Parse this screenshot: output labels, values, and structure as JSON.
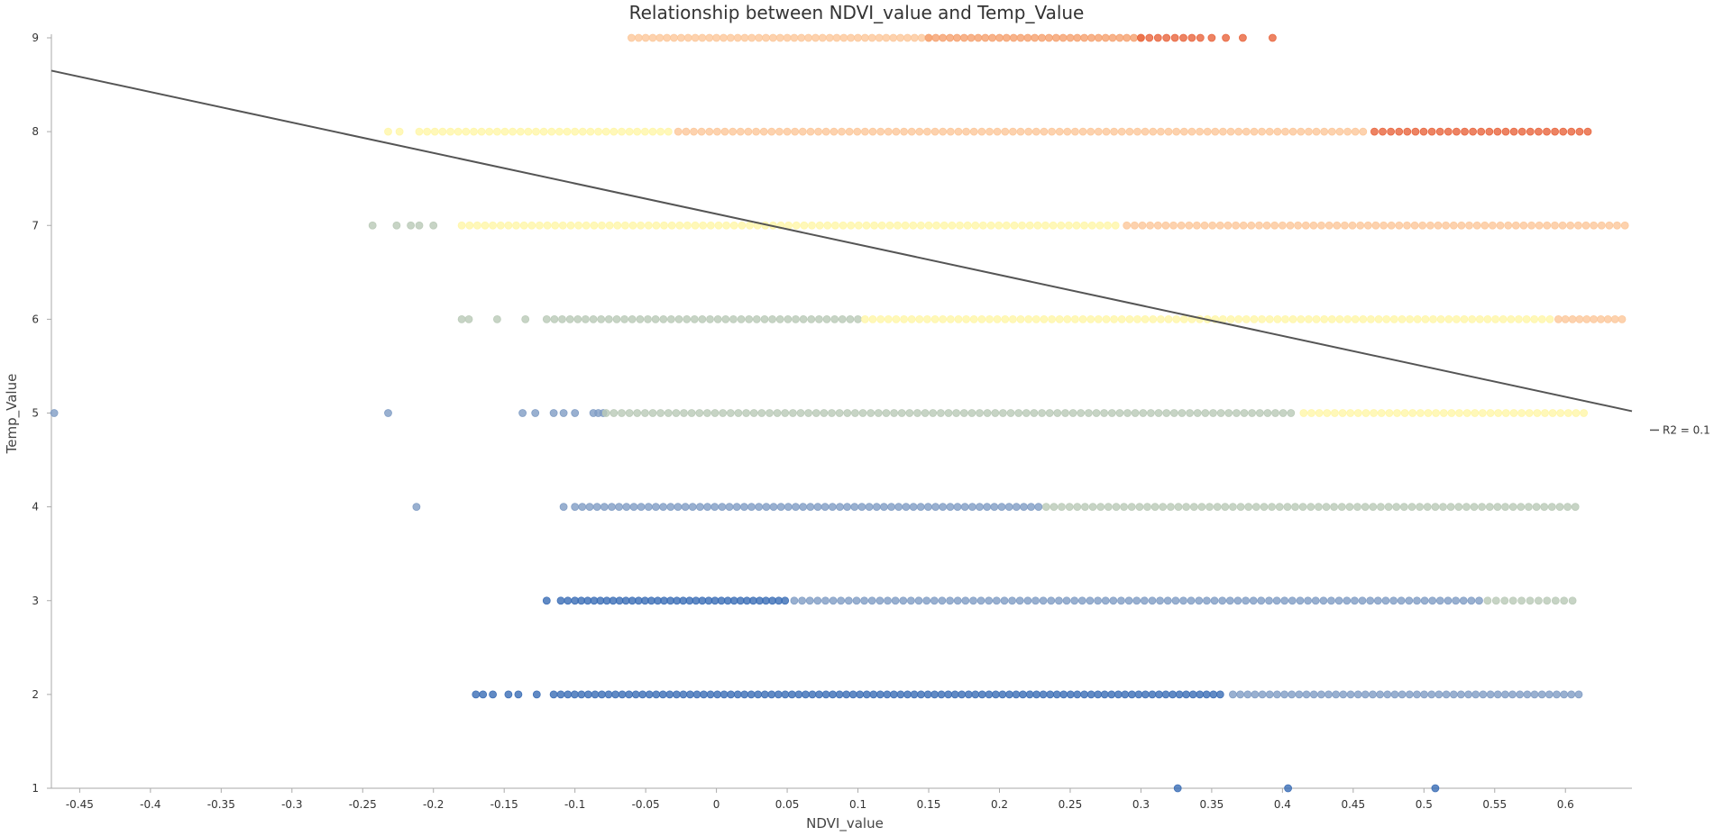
{
  "chart_data": {
    "type": "scatter",
    "title": "Relationship between NDVI_value and Temp_Value",
    "xlabel": "NDVI_value",
    "ylabel": "Temp_Value",
    "xlim": [
      -0.47,
      0.647
    ],
    "ylim": [
      1,
      9
    ],
    "x_ticks": [
      -0.45,
      -0.4,
      -0.35,
      -0.3,
      -0.25,
      -0.2,
      -0.15,
      -0.1,
      -0.05,
      0,
      0.05,
      0.1,
      0.15,
      0.2,
      0.25,
      0.3,
      0.35,
      0.4,
      0.45,
      0.5,
      0.55,
      0.6
    ],
    "y_ticks": [
      1,
      2,
      3,
      4,
      5,
      6,
      7,
      8,
      9
    ],
    "grid": false,
    "legend": {
      "position": "right",
      "label": "R2 = 0.1",
      "color": "#555555"
    },
    "colors": {
      "c1": "#3a6db5",
      "c2": "#7f9cc4",
      "c3": "#b9c9b7",
      "c4": "#fff6a8",
      "c5": "#fcc79a",
      "c6": "#f5a06e",
      "c7": "#e8643c"
    },
    "trendline": {
      "x": [
        -0.47,
        0.647
      ],
      "y": [
        8.65,
        5.02
      ]
    },
    "rows": [
      {
        "y": 1,
        "segments": [
          {
            "color": "c1",
            "points": [
              0.326,
              0.404,
              0.508
            ]
          }
        ]
      },
      {
        "y": 2,
        "segments": [
          {
            "color": "c1",
            "points": [
              -0.17,
              -0.165,
              -0.158,
              -0.147,
              -0.14,
              -0.127,
              -0.115,
              -0.11
            ],
            "from": -0.105,
            "to": 0.255,
            "step": 0.0048
          },
          {
            "color": "c1",
            "from": 0.26,
            "to": 0.36,
            "step": 0.0048
          },
          {
            "color": "c2",
            "from": 0.365,
            "to": 0.614,
            "step": 0.0052
          }
        ]
      },
      {
        "y": 3,
        "segments": [
          {
            "color": "c1",
            "points": [
              -0.12,
              -0.11,
              -0.105
            ],
            "from": -0.1,
            "to": 0.05,
            "step": 0.0045
          },
          {
            "color": "c2",
            "from": 0.055,
            "to": 0.54,
            "step": 0.0055
          },
          {
            "color": "c3",
            "from": 0.545,
            "to": 0.61,
            "step": 0.006
          }
        ]
      },
      {
        "y": 4,
        "segments": [
          {
            "color": "c2",
            "points": [
              -0.212,
              -0.108
            ],
            "from": -0.1,
            "to": 0.228,
            "step": 0.0052
          },
          {
            "color": "c3",
            "from": 0.233,
            "to": 0.612,
            "step": 0.0055
          }
        ]
      },
      {
        "y": 5,
        "segments": [
          {
            "color": "c2",
            "points": [
              -0.468,
              -0.232,
              -0.137,
              -0.128,
              -0.115,
              -0.108,
              -0.1
            ],
            "from": -0.087,
            "to": -0.08,
            "step": 0.0035
          },
          {
            "color": "c3",
            "from": -0.078,
            "to": 0.41,
            "step": 0.0055
          },
          {
            "color": "c4",
            "from": 0.415,
            "to": 0.618,
            "step": 0.0055
          }
        ]
      },
      {
        "y": 6,
        "segments": [
          {
            "color": "c3",
            "points": [
              -0.18,
              -0.175,
              -0.155,
              -0.135
            ],
            "from": -0.12,
            "to": 0.1,
            "step": 0.0055
          },
          {
            "color": "c4",
            "from": 0.105,
            "to": 0.59,
            "step": 0.0055
          },
          {
            "color": "c5",
            "from": 0.595,
            "to": 0.642,
            "step": 0.005
          }
        ]
      },
      {
        "y": 7,
        "segments": [
          {
            "color": "c3",
            "points": [
              -0.243,
              -0.226,
              -0.216,
              -0.21
            ],
            "from": -0.2,
            "to": -0.2,
            "step": 1
          },
          {
            "color": "c4",
            "from": -0.18,
            "to": 0.285,
            "step": 0.0055
          },
          {
            "color": "c5",
            "from": 0.29,
            "to": 0.645,
            "step": 0.0055
          }
        ]
      },
      {
        "y": 8,
        "segments": [
          {
            "color": "c4",
            "points": [
              -0.232,
              -0.224
            ],
            "from": -0.21,
            "to": -0.03,
            "step": 0.0055
          },
          {
            "color": "c5",
            "from": -0.027,
            "to": 0.46,
            "step": 0.0055
          },
          {
            "color": "c7",
            "from": 0.465,
            "to": 0.62,
            "step": 0.0058
          }
        ]
      },
      {
        "y": 9,
        "segments": [
          {
            "color": "c5",
            "from": -0.06,
            "to": 0.15,
            "step": 0.005
          },
          {
            "color": "c6",
            "from": 0.15,
            "to": 0.3,
            "step": 0.005
          },
          {
            "color": "c7",
            "from": 0.3,
            "to": 0.345,
            "step": 0.006
          },
          {
            "color": "c7",
            "points": [
              0.35,
              0.36,
              0.372,
              0.393
            ]
          }
        ]
      }
    ]
  }
}
